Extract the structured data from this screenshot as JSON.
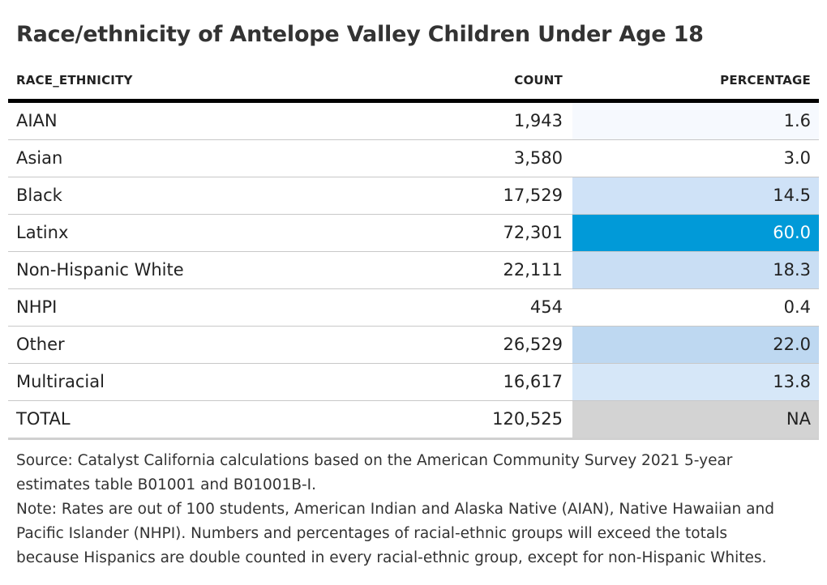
{
  "chart_data": {
    "type": "table",
    "title": "Race/ethnicity of Antelope Valley Children Under Age 18",
    "columns": [
      "RACE_ETHNICITY",
      "COUNT",
      "PERCENTAGE"
    ],
    "rows": [
      {
        "race": "AIAN",
        "count": "1,943",
        "percentage": "1.6",
        "pct_value": 1.6,
        "pct_color": "#f6f9fe",
        "pct_text_color": "#222222"
      },
      {
        "race": "Asian",
        "count": "3,580",
        "percentage": "3.0",
        "pct_value": 3.0,
        "pct_color": "#ffffff",
        "pct_text_color": "#222222"
      },
      {
        "race": "Black",
        "count": "17,529",
        "percentage": "14.5",
        "pct_value": 14.5,
        "pct_color": "#cfe2f7",
        "pct_text_color": "#222222"
      },
      {
        "race": "Latinx",
        "count": "72,301",
        "percentage": "60.0",
        "pct_value": 60.0,
        "pct_color": "#019ad8",
        "pct_text_color": "#ffffff"
      },
      {
        "race": "Non-Hispanic White",
        "count": "22,111",
        "percentage": "18.3",
        "pct_value": 18.3,
        "pct_color": "#c9def4",
        "pct_text_color": "#222222"
      },
      {
        "race": "NHPI",
        "count": "454",
        "percentage": "0.4",
        "pct_value": 0.4,
        "pct_color": "#ffffff",
        "pct_text_color": "#222222"
      },
      {
        "race": "Other",
        "count": "26,529",
        "percentage": "22.0",
        "pct_value": 22.0,
        "pct_color": "#bed8f1",
        "pct_text_color": "#222222"
      },
      {
        "race": "Multiracial",
        "count": "16,617",
        "percentage": "13.8",
        "pct_value": 13.8,
        "pct_color": "#d6e7f8",
        "pct_text_color": "#222222"
      },
      {
        "race": "TOTAL",
        "count": "120,525",
        "percentage": "NA",
        "pct_value": null,
        "pct_color": "#d3d3d3",
        "pct_text_color": "#222222"
      }
    ]
  },
  "footnote": {
    "lines": [
      "Source: Catalyst California calculations based on the American Community Survey 2021 5-year",
      "estimates table B01001 and B01001B-I.",
      "Note: Rates are out of 100 students, American Indian and Alaska Native (AIAN), Native Hawaiian and",
      "Pacific Islander (NHPI). Numbers and percentages of racial-ethnic groups will exceed the totals",
      "because Hispanics are double counted in every racial-ethnic group, except for non-Hispanic Whites."
    ]
  }
}
